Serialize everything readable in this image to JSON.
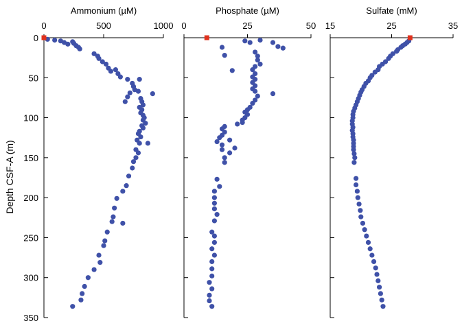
{
  "colors": {
    "point": "#3f51a8",
    "surface_marker": "#e0321e",
    "axis": "#000000"
  },
  "chart_data": {
    "type": "scatter",
    "ylabel": "Depth CSF-A (m)",
    "ylim": [
      0,
      350
    ],
    "yticks": [
      0,
      50,
      100,
      150,
      200,
      250,
      300,
      350
    ],
    "y_inverted": true,
    "panels": [
      {
        "title": "Ammonium (µM)",
        "xlim": [
          0,
          1000
        ],
        "xticks": [
          0,
          500,
          1000
        ],
        "surface_marker": {
          "x": 0,
          "y": 0
        },
        "points": [
          [
            30,
            2
          ],
          [
            90,
            3
          ],
          [
            140,
            4
          ],
          [
            170,
            6
          ],
          [
            200,
            8
          ],
          [
            240,
            5
          ],
          [
            250,
            7
          ],
          [
            270,
            10
          ],
          [
            290,
            12
          ],
          [
            300,
            14
          ],
          [
            420,
            20
          ],
          [
            450,
            23
          ],
          [
            460,
            26
          ],
          [
            490,
            30
          ],
          [
            520,
            33
          ],
          [
            540,
            38
          ],
          [
            560,
            42
          ],
          [
            600,
            40
          ],
          [
            620,
            45
          ],
          [
            640,
            49
          ],
          [
            700,
            52
          ],
          [
            800,
            52
          ],
          [
            740,
            57
          ],
          [
            750,
            61
          ],
          [
            760,
            65
          ],
          [
            790,
            67
          ],
          [
            910,
            70
          ],
          [
            720,
            69
          ],
          [
            700,
            74
          ],
          [
            680,
            80
          ],
          [
            810,
            76
          ],
          [
            820,
            80
          ],
          [
            830,
            84
          ],
          [
            800,
            87
          ],
          [
            820,
            90
          ],
          [
            810,
            94
          ],
          [
            830,
            97
          ],
          [
            840,
            100
          ],
          [
            830,
            103
          ],
          [
            850,
            107
          ],
          [
            820,
            110
          ],
          [
            830,
            113
          ],
          [
            800,
            117
          ],
          [
            790,
            120
          ],
          [
            810,
            124
          ],
          [
            780,
            128
          ],
          [
            870,
            132
          ],
          [
            800,
            132
          ],
          [
            770,
            140
          ],
          [
            790,
            144
          ],
          [
            770,
            150
          ],
          [
            750,
            155
          ],
          [
            740,
            163
          ],
          [
            710,
            173
          ],
          [
            690,
            185
          ],
          [
            660,
            192
          ],
          [
            610,
            201
          ],
          [
            590,
            213
          ],
          [
            580,
            224
          ],
          [
            660,
            232
          ],
          [
            570,
            230
          ],
          [
            530,
            243
          ],
          [
            510,
            254
          ],
          [
            500,
            260
          ],
          [
            460,
            272
          ],
          [
            470,
            281
          ],
          [
            420,
            290
          ],
          [
            370,
            300
          ],
          [
            340,
            311
          ],
          [
            320,
            320
          ],
          [
            310,
            328
          ],
          [
            240,
            336
          ]
        ]
      },
      {
        "title": "Phosphate (µM)",
        "xlim": [
          0,
          50
        ],
        "xticks": [
          0,
          25,
          50
        ],
        "surface_marker": {
          "x": 9,
          "y": 0
        },
        "points": [
          [
            24,
            4
          ],
          [
            26,
            6
          ],
          [
            30,
            3
          ],
          [
            35,
            6
          ],
          [
            37,
            11
          ],
          [
            39,
            13
          ],
          [
            15,
            12
          ],
          [
            28,
            18
          ],
          [
            29,
            23
          ],
          [
            16,
            22
          ],
          [
            29,
            28
          ],
          [
            30,
            33
          ],
          [
            28,
            36
          ],
          [
            27,
            40
          ],
          [
            19,
            41
          ],
          [
            28,
            45
          ],
          [
            27,
            49
          ],
          [
            28,
            52
          ],
          [
            27,
            56
          ],
          [
            28,
            60
          ],
          [
            27,
            64
          ],
          [
            28,
            67
          ],
          [
            35,
            70
          ],
          [
            29,
            73
          ],
          [
            28,
            78
          ],
          [
            27,
            82
          ],
          [
            26,
            87
          ],
          [
            25,
            90
          ],
          [
            24,
            93
          ],
          [
            25,
            96
          ],
          [
            24,
            100
          ],
          [
            23,
            103
          ],
          [
            23,
            106
          ],
          [
            21,
            108
          ],
          [
            16,
            111
          ],
          [
            15,
            114
          ],
          [
            16,
            118
          ],
          [
            15,
            122
          ],
          [
            14,
            125
          ],
          [
            18,
            128
          ],
          [
            13,
            130
          ],
          [
            15,
            134
          ],
          [
            20,
            138
          ],
          [
            15,
            140
          ],
          [
            18,
            144
          ],
          [
            16,
            150
          ],
          [
            16,
            156
          ],
          [
            13,
            177
          ],
          [
            14,
            186
          ],
          [
            12,
            192
          ],
          [
            12,
            200
          ],
          [
            12,
            207
          ],
          [
            12,
            214
          ],
          [
            13,
            221
          ],
          [
            12,
            229
          ],
          [
            11,
            243
          ],
          [
            12,
            248
          ],
          [
            12,
            256
          ],
          [
            11,
            264
          ],
          [
            12,
            272
          ],
          [
            11,
            280
          ],
          [
            11,
            289
          ],
          [
            11,
            298
          ],
          [
            10,
            306
          ],
          [
            11,
            314
          ],
          [
            10,
            322
          ],
          [
            10,
            329
          ],
          [
            11,
            336
          ]
        ]
      },
      {
        "title": "Sulfate (mM)",
        "xlim": [
          15,
          35
        ],
        "xticks": [
          15,
          25,
          35
        ],
        "surface_marker": {
          "x": 28,
          "y": 0
        },
        "points": [
          [
            27.8,
            4
          ],
          [
            27.5,
            6
          ],
          [
            27.2,
            8
          ],
          [
            26.8,
            10
          ],
          [
            26.5,
            12
          ],
          [
            26.0,
            15
          ],
          [
            25.8,
            17
          ],
          [
            25.2,
            20
          ],
          [
            24.8,
            23
          ],
          [
            24.5,
            26
          ],
          [
            24.0,
            30
          ],
          [
            23.5,
            33
          ],
          [
            23.0,
            36
          ],
          [
            22.8,
            40
          ],
          [
            22.3,
            43
          ],
          [
            21.8,
            47
          ],
          [
            21.5,
            50
          ],
          [
            21.2,
            54
          ],
          [
            20.8,
            57
          ],
          [
            20.5,
            61
          ],
          [
            20.2,
            65
          ],
          [
            20.0,
            68
          ],
          [
            19.8,
            72
          ],
          [
            19.6,
            76
          ],
          [
            19.4,
            80
          ],
          [
            19.2,
            84
          ],
          [
            19.0,
            88
          ],
          [
            18.8,
            92
          ],
          [
            18.7,
            96
          ],
          [
            18.7,
            100
          ],
          [
            18.6,
            104
          ],
          [
            18.6,
            108
          ],
          [
            18.7,
            112
          ],
          [
            18.6,
            116
          ],
          [
            18.7,
            120
          ],
          [
            18.7,
            124
          ],
          [
            18.8,
            128
          ],
          [
            18.8,
            132
          ],
          [
            18.8,
            136
          ],
          [
            18.8,
            140
          ],
          [
            18.9,
            145
          ],
          [
            19.0,
            150
          ],
          [
            18.9,
            156
          ],
          [
            19.2,
            176
          ],
          [
            19.2,
            184
          ],
          [
            19.4,
            192
          ],
          [
            19.5,
            200
          ],
          [
            19.7,
            208
          ],
          [
            19.9,
            216
          ],
          [
            20.0,
            224
          ],
          [
            20.3,
            232
          ],
          [
            20.6,
            240
          ],
          [
            20.9,
            248
          ],
          [
            21.2,
            256
          ],
          [
            21.5,
            264
          ],
          [
            21.8,
            272
          ],
          [
            22.1,
            280
          ],
          [
            22.4,
            288
          ],
          [
            22.6,
            296
          ],
          [
            22.8,
            304
          ],
          [
            23.0,
            312
          ],
          [
            23.2,
            320
          ],
          [
            23.4,
            328
          ],
          [
            23.6,
            336
          ]
        ]
      }
    ]
  }
}
